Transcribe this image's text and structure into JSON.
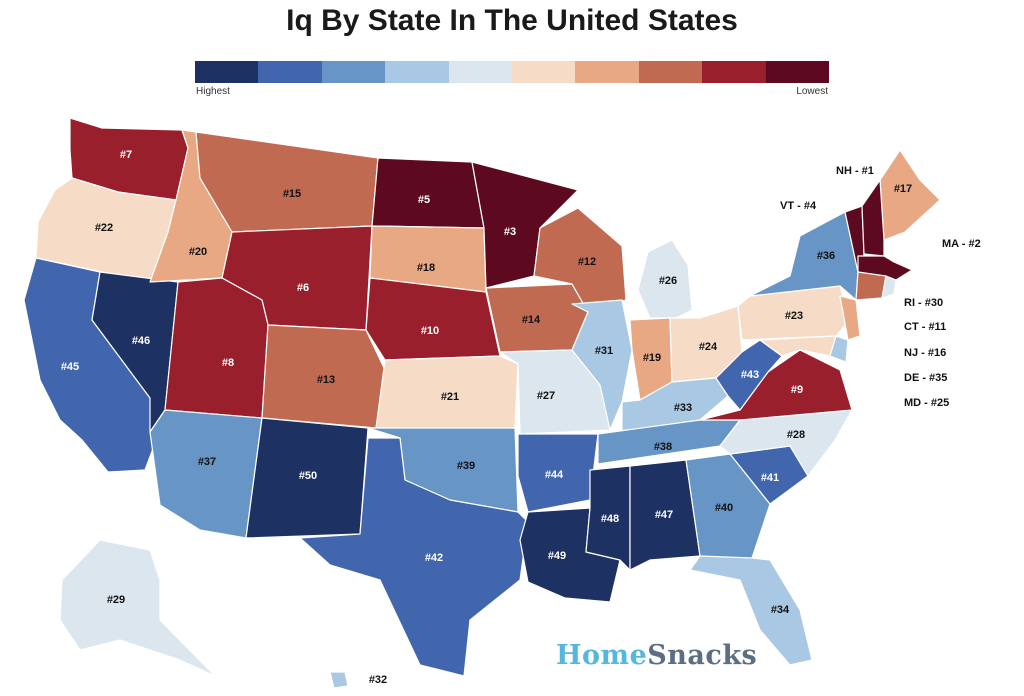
{
  "title": "Iq By State In The United States",
  "legend": {
    "low_label": "Highest",
    "high_label": "Lowest",
    "colors": [
      "#1e3163",
      "#4266ad",
      "#6796c6",
      "#a9c8e3",
      "#dbe6ef",
      "#f6dcc6",
      "#e8a883",
      "#c16a52",
      "#9a1f2c",
      "#5d0a20"
    ]
  },
  "brand": {
    "part1": "Home",
    "part2": "Snacks"
  },
  "states": [
    {
      "code": "WA",
      "label": "#7",
      "bin": 8
    },
    {
      "code": "OR",
      "label": "#22",
      "bin": 5
    },
    {
      "code": "CA",
      "label": "#45",
      "bin": 1
    },
    {
      "code": "NV",
      "label": "#46",
      "bin": 0
    },
    {
      "code": "ID",
      "label": "#20",
      "bin": 6
    },
    {
      "code": "MT",
      "label": "#15",
      "bin": 7
    },
    {
      "code": "WY",
      "label": "#6",
      "bin": 8
    },
    {
      "code": "UT",
      "label": "#8",
      "bin": 8
    },
    {
      "code": "AZ",
      "label": "#37",
      "bin": 2
    },
    {
      "code": "CO",
      "label": "#13",
      "bin": 7
    },
    {
      "code": "NM",
      "label": "#50",
      "bin": 0
    },
    {
      "code": "ND",
      "label": "#5",
      "bin": 9
    },
    {
      "code": "SD",
      "label": "#18",
      "bin": 6
    },
    {
      "code": "NE",
      "label": "#10",
      "bin": 8
    },
    {
      "code": "KS",
      "label": "#21",
      "bin": 5
    },
    {
      "code": "OK",
      "label": "#39",
      "bin": 2
    },
    {
      "code": "TX",
      "label": "#42",
      "bin": 1
    },
    {
      "code": "MN",
      "label": "#3",
      "bin": 9
    },
    {
      "code": "IA",
      "label": "#14",
      "bin": 7
    },
    {
      "code": "MO",
      "label": "#27",
      "bin": 4
    },
    {
      "code": "AR",
      "label": "#44",
      "bin": 1
    },
    {
      "code": "LA",
      "label": "#49",
      "bin": 0
    },
    {
      "code": "WI",
      "label": "#12",
      "bin": 7
    },
    {
      "code": "IL",
      "label": "#31",
      "bin": 3
    },
    {
      "code": "MI",
      "label": "#26",
      "bin": 4
    },
    {
      "code": "IN",
      "label": "#19",
      "bin": 6
    },
    {
      "code": "OH",
      "label": "#24",
      "bin": 5
    },
    {
      "code": "KY",
      "label": "#33",
      "bin": 3
    },
    {
      "code": "TN",
      "label": "#38",
      "bin": 2
    },
    {
      "code": "MS",
      "label": "#48",
      "bin": 0
    },
    {
      "code": "AL",
      "label": "#47",
      "bin": 0
    },
    {
      "code": "GA",
      "label": "#40",
      "bin": 2
    },
    {
      "code": "FL",
      "label": "#34",
      "bin": 3
    },
    {
      "code": "SC",
      "label": "#41",
      "bin": 1
    },
    {
      "code": "NC",
      "label": "#28",
      "bin": 4
    },
    {
      "code": "VA",
      "label": "#9",
      "bin": 8
    },
    {
      "code": "WV",
      "label": "#43",
      "bin": 1
    },
    {
      "code": "PA",
      "label": "#23",
      "bin": 5
    },
    {
      "code": "NY",
      "label": "#36",
      "bin": 2
    },
    {
      "code": "ME",
      "label": "#17",
      "bin": 6
    },
    {
      "code": "AK",
      "label": "#29",
      "bin": 4
    },
    {
      "code": "HI",
      "label": "#32",
      "bin": 3
    },
    {
      "code": "VT",
      "label": "",
      "bin": 9
    },
    {
      "code": "NH",
      "label": "",
      "bin": 9
    },
    {
      "code": "MA",
      "label": "",
      "bin": 9
    },
    {
      "code": "RI",
      "label": "",
      "bin": 4
    },
    {
      "code": "CT",
      "label": "",
      "bin": 7
    },
    {
      "code": "NJ",
      "label": "",
      "bin": 6
    },
    {
      "code": "DE",
      "label": "",
      "bin": 3
    },
    {
      "code": "MD",
      "label": "",
      "bin": 5
    }
  ],
  "callouts": [
    {
      "code": "NH",
      "text": "NH - #1"
    },
    {
      "code": "VT",
      "text": "VT - #4"
    },
    {
      "code": "MA",
      "text": "MA - #2"
    },
    {
      "code": "RI",
      "text": "RI - #30"
    },
    {
      "code": "CT",
      "text": "CT - #11"
    },
    {
      "code": "NJ",
      "text": "NJ - #16"
    },
    {
      "code": "DE",
      "text": "DE - #35"
    },
    {
      "code": "MD",
      "text": "MD - #25"
    }
  ]
}
